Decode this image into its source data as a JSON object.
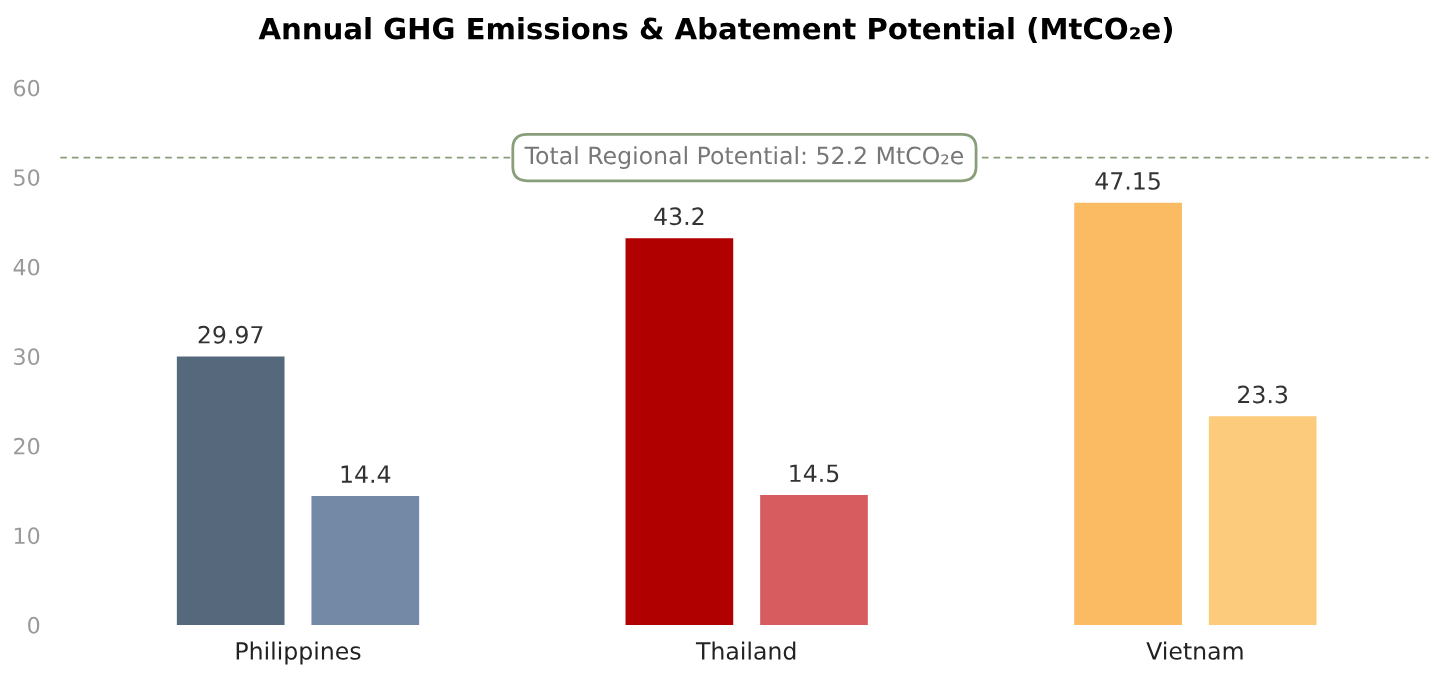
{
  "chart_data": {
    "type": "bar",
    "title": "Annual GHG Emissions & Abatement Potential (MtCO₂e)",
    "categories": [
      "Philippines",
      "Thailand",
      "Vietnam"
    ],
    "series": [
      {
        "values": [
          29.97,
          43.2,
          47.15
        ],
        "colors": [
          "#56687c",
          "#b00000",
          "#fbbb62"
        ]
      },
      {
        "values": [
          14.4,
          14.5,
          23.3
        ],
        "colors": [
          "#7389a6",
          "#d75c60",
          "#fdcb7c"
        ]
      }
    ],
    "ylim": [
      0,
      60
    ],
    "yticks": [
      0,
      10,
      20,
      30,
      40,
      50,
      60
    ],
    "ref_lines": [
      {
        "axis": "y",
        "value": 52.2,
        "label": "Total Regional Potential: 52.2 MtCO₂e",
        "color": "#8a9e7c",
        "line_style": "dashed"
      }
    ],
    "data_labels": true,
    "grid": false,
    "legend": false
  }
}
